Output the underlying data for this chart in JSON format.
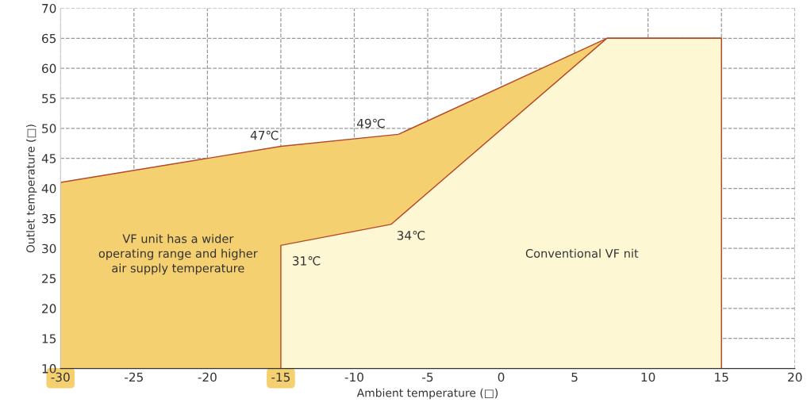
{
  "chart_data": {
    "type": "area",
    "xlabel": "Ambient temperature (□)",
    "ylabel": "Outlet temperature (□)",
    "xlim": [
      -30,
      20
    ],
    "ylim": [
      10,
      70
    ],
    "xticks": [
      -30,
      -25,
      -20,
      -15,
      -10,
      -5,
      0,
      5,
      10,
      15,
      20
    ],
    "yticks": [
      10,
      15,
      20,
      25,
      30,
      35,
      40,
      45,
      50,
      55,
      60,
      65,
      70
    ],
    "grid": true,
    "line_style": "dashed",
    "series": [
      {
        "color": "#f4d070",
        "x": [
          -30,
          -15,
          -7,
          7.2,
          15,
          15
        ],
        "values": [
          41,
          47,
          49,
          65,
          65,
          10
        ]
      },
      {
        "color": "#fef7d3",
        "x": [
          -15,
          -15,
          -7.5,
          7.2,
          15,
          15
        ],
        "values": [
          10,
          30.5,
          34,
          65,
          65,
          10
        ]
      }
    ],
    "annotations": [
      {
        "text": "47℃",
        "x": -15,
        "y": 47
      },
      {
        "text": "49℃",
        "x": -7,
        "y": 49
      },
      {
        "text": "34℃",
        "x": -7.5,
        "y": 34
      },
      {
        "text": "31℃",
        "x": -15,
        "y": 30.5
      },
      "VF unit has a wider\noperating range and higher\nair supply temperature",
      "Conventional VF nit"
    ]
  }
}
